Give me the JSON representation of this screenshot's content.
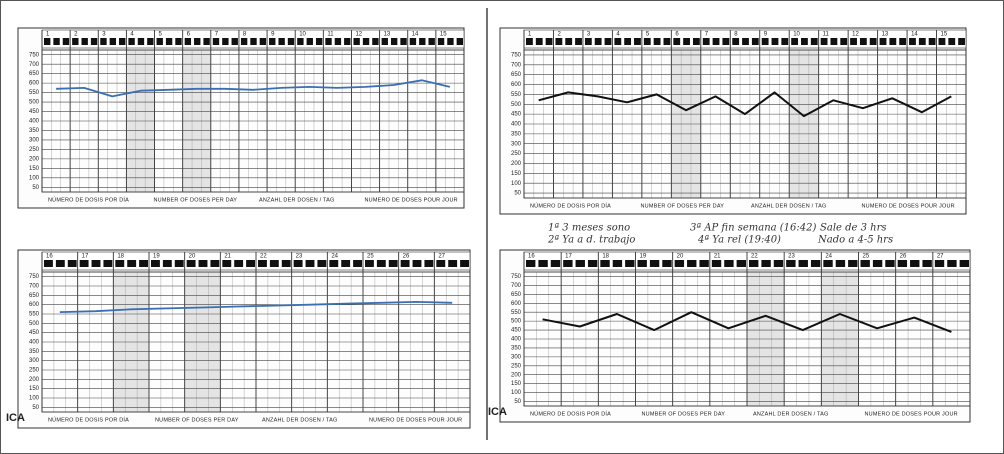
{
  "chart_data": [
    {
      "type": "line",
      "color": "#3a6fb5",
      "categories": [
        "1",
        "2",
        "3",
        "4",
        "5",
        "6",
        "7",
        "8",
        "9",
        "10",
        "11",
        "12",
        "13",
        "14",
        "15"
      ],
      "values": [
        570,
        575,
        530,
        560,
        565,
        570,
        570,
        565,
        575,
        580,
        575,
        580,
        590,
        615,
        580
      ],
      "ylim": [
        25,
        775
      ],
      "yticks": [
        50,
        100,
        150,
        200,
        250,
        300,
        350,
        400,
        450,
        500,
        550,
        600,
        650,
        700,
        750
      ],
      "footer": [
        "NÚMERO DE DOSIS POR DÍA",
        "NUMBER OF DOSES PER DAY",
        "ANZAHL DER DOSEN / TAG",
        "NUMERO DE DOSES POUR JOUR"
      ]
    },
    {
      "type": "line",
      "color": "#111111",
      "categories": [
        "1",
        "2",
        "3",
        "4",
        "5",
        "6",
        "7",
        "8",
        "9",
        "10",
        "11",
        "12",
        "13",
        "14",
        "15"
      ],
      "values": [
        520,
        560,
        540,
        510,
        550,
        470,
        540,
        450,
        560,
        440,
        520,
        480,
        530,
        460,
        540
      ],
      "ylim": [
        25,
        775
      ],
      "yticks": [
        50,
        100,
        150,
        200,
        250,
        300,
        350,
        400,
        450,
        500,
        550,
        600,
        650,
        700,
        750
      ],
      "footer": [
        "NÚMERO DE DOSIS POR DÍA",
        "NUMBER OF DOSES PER DAY",
        "ANZAHL DER DOSEN / TAG",
        "NUMERO DE DOSES POUR JOUR"
      ]
    },
    {
      "type": "line",
      "color": "#3a6fb5",
      "categories": [
        "16",
        "17",
        "18",
        "19",
        "20",
        "21",
        "22",
        "23",
        "24",
        "25",
        "26",
        "27"
      ],
      "values": [
        560,
        565,
        575,
        580,
        585,
        590,
        595,
        600,
        605,
        610,
        615,
        610
      ],
      "ylim": [
        25,
        775
      ],
      "yticks": [
        50,
        100,
        150,
        200,
        250,
        300,
        350,
        400,
        450,
        500,
        550,
        600,
        650,
        700,
        750
      ],
      "edge_text": "ICA",
      "footer": [
        "NÚMERO DE DOSIS POR DÍA",
        "NUMBER OF DOSES PER DAY",
        "ANZAHL DER DOSEN / TAG",
        "NUMERO DE DOSES POUR JOUR"
      ]
    },
    {
      "type": "line",
      "color": "#111111",
      "categories": [
        "16",
        "17",
        "18",
        "19",
        "20",
        "21",
        "22",
        "23",
        "24",
        "25",
        "26",
        "27"
      ],
      "values": [
        510,
        470,
        540,
        450,
        550,
        460,
        530,
        450,
        540,
        460,
        520,
        440
      ],
      "ylim": [
        25,
        775
      ],
      "yticks": [
        50,
        100,
        150,
        200,
        250,
        300,
        350,
        400,
        450,
        500,
        550,
        600,
        650,
        700,
        750
      ],
      "edge_text": "ICA",
      "annotations": [
        "1ª 3 meses sono",
        "2ª Ya a d. trabajo",
        "3ª AP fin semana (16:42)",
        "4ª Ya rel (19:40)",
        "Sale de 3 hrs",
        "Nado a 4-5 hrs"
      ],
      "footer": [
        "NÚMERO DE DOSIS POR DÍA",
        "NUMBER OF DOSES PER DAY",
        "ANZAHL DER DOSEN / TAG",
        "NUMERO DE DOSES POUR JOUR"
      ]
    }
  ]
}
